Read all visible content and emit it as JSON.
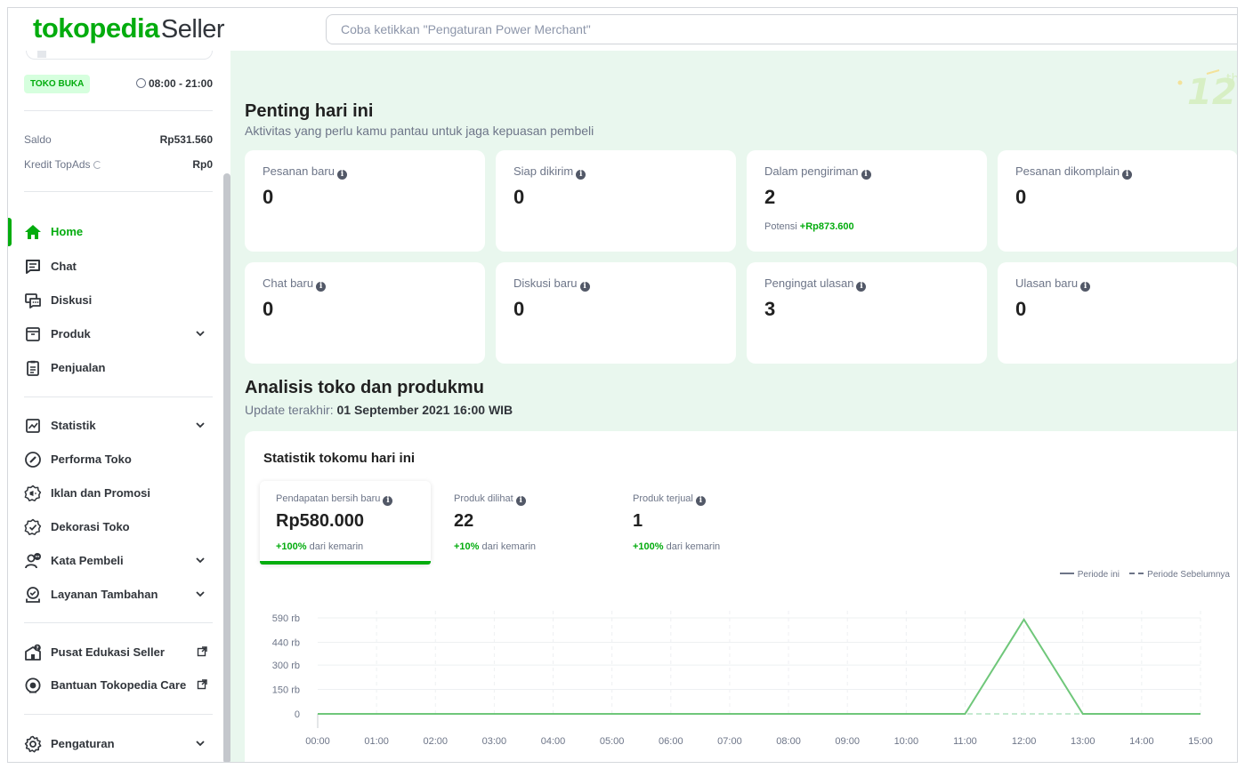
{
  "header": {
    "logo_main": "tokopedia",
    "logo_suffix": "Seller",
    "search_placeholder": "Coba ketikkan \"Pengaturan Power Merchant\""
  },
  "sidebar": {
    "shop_status": "TOKO BUKA",
    "shop_hours": "08:00 - 21:00",
    "saldo_label": "Saldo",
    "saldo_value": "Rp531.560",
    "topads_label": "Kredit TopAds",
    "topads_value": "Rp0",
    "items": [
      {
        "label": "Home",
        "icon": "home-icon"
      },
      {
        "label": "Chat",
        "icon": "chat-icon"
      },
      {
        "label": "Diskusi",
        "icon": "discussion-icon"
      },
      {
        "label": "Produk",
        "icon": "box-icon"
      },
      {
        "label": "Penjualan",
        "icon": "clipboard-icon"
      },
      {
        "label": "Statistik",
        "icon": "chart-icon"
      },
      {
        "label": "Performa Toko",
        "icon": "gauge-icon"
      },
      {
        "label": "Iklan dan Promosi",
        "icon": "megaphone-icon"
      },
      {
        "label": "Dekorasi Toko",
        "icon": "decoration-icon"
      },
      {
        "label": "Kata Pembeli",
        "icon": "buyer-chat-icon"
      },
      {
        "label": "Layanan Tambahan",
        "icon": "services-icon"
      },
      {
        "label": "Pusat Edukasi Seller",
        "icon": "education-icon"
      },
      {
        "label": "Bantuan Tokopedia Care",
        "icon": "headset-icon"
      },
      {
        "label": "Pengaturan",
        "icon": "gear-icon"
      }
    ]
  },
  "main": {
    "important": {
      "title": "Penting hari ini",
      "subtitle": "Aktivitas yang perlu kamu pantau untuk jaga kepuasan pembeli",
      "cards": [
        {
          "label": "Pesanan baru",
          "value": "0",
          "note_prefix": "",
          "note_value": ""
        },
        {
          "label": "Siap dikirim",
          "value": "0",
          "note_prefix": "",
          "note_value": ""
        },
        {
          "label": "Dalam pengiriman",
          "value": "2",
          "note_prefix": "Potensi",
          "note_value": "+Rp873.600"
        },
        {
          "label": "Pesanan dikomplain",
          "value": "0",
          "note_prefix": "",
          "note_value": ""
        },
        {
          "label": "Chat baru",
          "value": "0",
          "note_prefix": "",
          "note_value": ""
        },
        {
          "label": "Diskusi baru",
          "value": "0",
          "note_prefix": "",
          "note_value": ""
        },
        {
          "label": "Pengingat ulasan",
          "value": "3",
          "note_prefix": "",
          "note_value": ""
        },
        {
          "label": "Ulasan baru",
          "value": "0",
          "note_prefix": "",
          "note_value": ""
        }
      ]
    },
    "analysis": {
      "title": "Analisis toko dan produkmu",
      "update_prefix": "Update terakhir:",
      "update_value": "01 September 2021 16:00 WIB"
    },
    "stats": {
      "title": "Statistik tokomu hari ini",
      "metrics": [
        {
          "label": "Pendapatan bersih baru",
          "value": "Rp580.000",
          "change": "+100%",
          "suffix": "dari kemarin"
        },
        {
          "label": "Produk dilihat",
          "value": "22",
          "change": "+10%",
          "suffix": "dari kemarin"
        },
        {
          "label": "Produk terjual",
          "value": "1",
          "change": "+100%",
          "suffix": "dari kemarin"
        }
      ],
      "legend_current": "Periode ini",
      "legend_previous": "Periode Sebelumnya"
    }
  },
  "colors": {
    "accent": "#03ac0e",
    "main_bg": "#e9f7ee",
    "line": "#6fc77a",
    "prev_line": "#c5ead0"
  },
  "chart_data": {
    "type": "line",
    "x": [
      "00:00",
      "01:00",
      "02:00",
      "03:00",
      "04:00",
      "05:00",
      "06:00",
      "07:00",
      "08:00",
      "09:00",
      "10:00",
      "11:00",
      "12:00",
      "13:00",
      "14:00",
      "15:00"
    ],
    "y_ticks": [
      "0",
      "150 rb",
      "300 rb",
      "440 rb",
      "590 rb"
    ],
    "y_tick_values": [
      0,
      150000,
      300000,
      440000,
      590000
    ],
    "ylim": [
      0,
      590000
    ],
    "series": [
      {
        "name": "Periode ini",
        "style": "solid",
        "values": [
          0,
          0,
          0,
          0,
          0,
          0,
          0,
          0,
          0,
          0,
          0,
          0,
          580000,
          0,
          0,
          0
        ]
      },
      {
        "name": "Periode Sebelumnya",
        "style": "dashed",
        "values": [
          0,
          0,
          0,
          0,
          0,
          0,
          0,
          0,
          0,
          0,
          0,
          0,
          0,
          0,
          0,
          0
        ]
      }
    ],
    "grid": true,
    "legend": "top-right"
  }
}
